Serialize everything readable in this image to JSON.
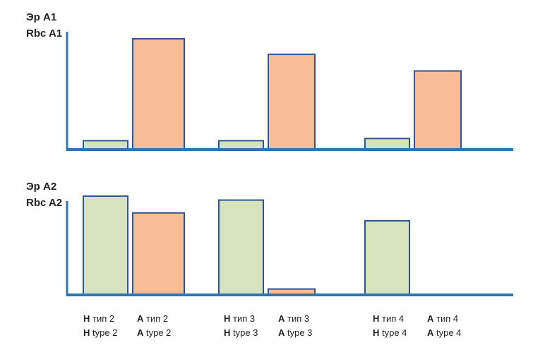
{
  "chart_data": [
    {
      "type": "bar",
      "ylabel_lines": [
        "Эр A1",
        "Rbc A1"
      ],
      "categories": [
        "тип 2",
        "тип 3",
        "тип 4"
      ],
      "series": [
        {
          "name": "Н",
          "color": "#d6e3bc",
          "values": [
            8,
            8,
            10
          ]
        },
        {
          "name": "А",
          "color": "#f8bc96",
          "values": [
            100,
            86,
            71
          ]
        }
      ],
      "ylim": [
        0,
        100
      ]
    },
    {
      "type": "bar",
      "ylabel_lines": [
        "Эр A2",
        "Rbc A2"
      ],
      "categories": [
        "тип 2",
        "тип 3",
        "тип 4"
      ],
      "series": [
        {
          "name": "Н",
          "color": "#d6e3bc",
          "values": [
            100,
            96,
            75
          ]
        },
        {
          "name": "А",
          "color": "#f8bc96",
          "values": [
            83,
            6,
            0
          ]
        }
      ],
      "ylim": [
        0,
        100
      ]
    }
  ],
  "category_labels": [
    [
      {
        "prefix": "Н",
        "text": " тип 2"
      },
      {
        "prefix": "А",
        "text": " тип 2"
      },
      {
        "prefix": "Н",
        "text": " тип 3"
      },
      {
        "prefix": "А",
        "text": " тип 3"
      },
      {
        "prefix": "Н",
        "text": " тип 4"
      },
      {
        "prefix": "А",
        "text": " тип 4"
      }
    ],
    [
      {
        "prefix": "H",
        "text": " type 2"
      },
      {
        "prefix": "A",
        "text": " type 2"
      },
      {
        "prefix": "H",
        "text": " type 3"
      },
      {
        "prefix": "A",
        "text": " type 3"
      },
      {
        "prefix": "H",
        "text": " type 4"
      },
      {
        "prefix": "A",
        "text": " type 4"
      }
    ]
  ],
  "colors": {
    "axis": "#2e75b6",
    "bar_outline": "#2f5597"
  }
}
